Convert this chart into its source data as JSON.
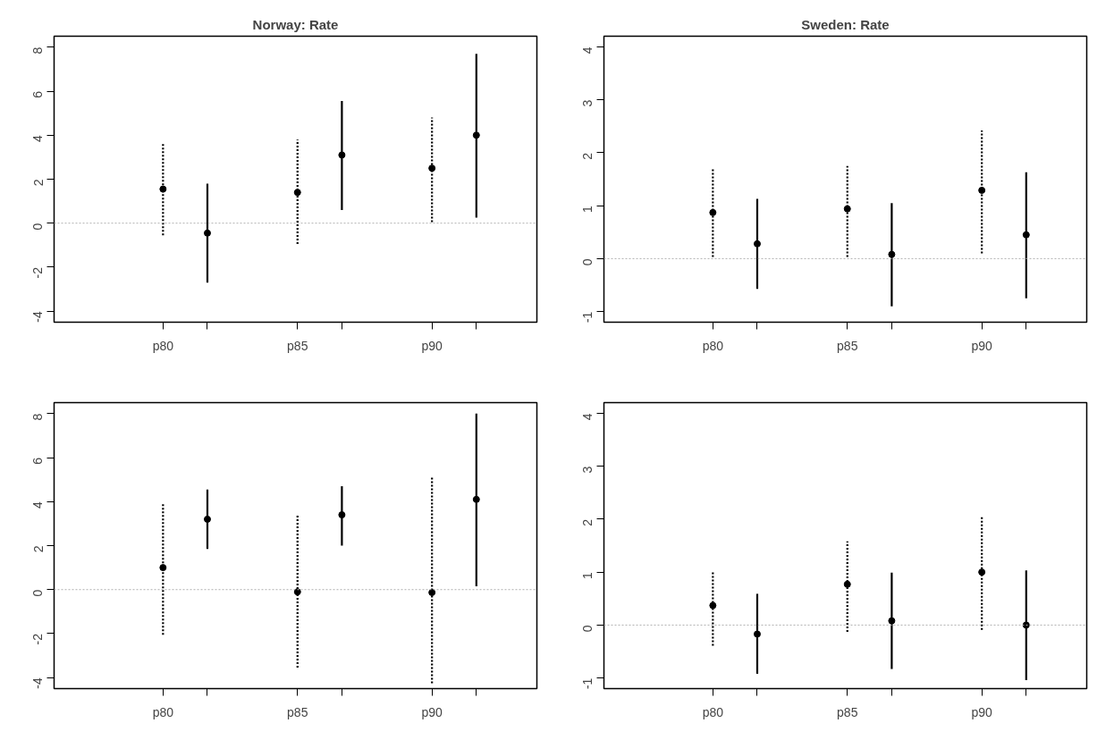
{
  "chart_data": [
    {
      "type": "scatter",
      "title": "Norway: Rate",
      "marker": "circle",
      "grid": false,
      "ylim": [
        -4.5,
        8.5
      ],
      "yticks": [
        -4,
        -2,
        0,
        2,
        4,
        6,
        8
      ],
      "categories": [
        "p80",
        null,
        "p85",
        null,
        "p90",
        null
      ],
      "ref_lines": [
        {
          "axis": "y",
          "value": 0,
          "label": null,
          "color": "#b0b0b0",
          "line_style": "dotted"
        }
      ],
      "series": [
        {
          "color": "#000000",
          "line_style": "dotted",
          "values": [
            1.55,
            null,
            1.4,
            null,
            2.5,
            null
          ],
          "errors": [
            [
              -0.55,
              3.6
            ],
            null,
            [
              -0.95,
              3.8
            ],
            null,
            [
              0.05,
              4.8
            ],
            null
          ]
        },
        {
          "color": "#000000",
          "line_style": "solid",
          "values": [
            null,
            -0.45,
            null,
            3.1,
            null,
            4.0
          ],
          "errors": [
            null,
            [
              -2.7,
              1.8
            ],
            null,
            [
              0.6,
              5.55
            ],
            null,
            [
              0.25,
              7.7
            ]
          ]
        }
      ]
    },
    {
      "type": "scatter",
      "title": "Sweden: Rate",
      "marker": "circle",
      "grid": false,
      "ylim": [
        -1.2,
        4.2
      ],
      "yticks": [
        -1,
        0,
        1,
        2,
        3,
        4
      ],
      "categories": [
        "p80",
        null,
        "p85",
        null,
        "p90",
        null
      ],
      "ref_lines": [
        {
          "axis": "y",
          "value": 0,
          "label": null,
          "color": "#b0b0b0",
          "line_style": "dotted"
        }
      ],
      "series": [
        {
          "color": "#000000",
          "line_style": "dotted",
          "values": [
            0.87,
            null,
            0.94,
            null,
            1.29,
            null
          ],
          "errors": [
            [
              0.03,
              1.71
            ],
            null,
            [
              0.03,
              1.75
            ],
            null,
            [
              0.1,
              2.42
            ],
            null
          ]
        },
        {
          "color": "#000000",
          "line_style": "solid",
          "values": [
            null,
            0.28,
            null,
            0.08,
            null,
            0.45
          ],
          "errors": [
            null,
            [
              -0.57,
              1.13
            ],
            null,
            [
              -0.9,
              1.05
            ],
            null,
            [
              -0.75,
              1.63
            ]
          ]
        }
      ]
    },
    {
      "type": "scatter",
      "marker": "circle",
      "grid": false,
      "ylim": [
        -4.5,
        8.5
      ],
      "yticks": [
        -4,
        -2,
        0,
        2,
        4,
        6,
        8
      ],
      "categories": [
        "p80",
        null,
        "p85",
        null,
        "p90",
        null
      ],
      "ref_lines": [
        {
          "axis": "y",
          "value": 0,
          "label": null,
          "color": "#b0b0b0",
          "line_style": "dotted"
        }
      ],
      "series": [
        {
          "color": "#000000",
          "line_style": "dotted",
          "values": [
            1.0,
            null,
            -0.1,
            null,
            -0.13,
            null
          ],
          "errors": [
            [
              -2.05,
              3.9
            ],
            null,
            [
              -3.55,
              3.4
            ],
            null,
            [
              -4.26,
              5.1
            ],
            null
          ]
        },
        {
          "color": "#000000",
          "line_style": "solid",
          "values": [
            null,
            3.2,
            null,
            3.4,
            null,
            4.1
          ],
          "errors": [
            null,
            [
              1.85,
              4.55
            ],
            null,
            [
              2.0,
              4.7
            ],
            null,
            [
              0.15,
              8.0
            ]
          ]
        }
      ]
    },
    {
      "type": "scatter",
      "marker": "circle",
      "grid": false,
      "ylim": [
        -1.2,
        4.2
      ],
      "yticks": [
        -1,
        0,
        1,
        2,
        3,
        4
      ],
      "categories": [
        "p80",
        null,
        "p85",
        null,
        "p90",
        null
      ],
      "ref_lines": [
        {
          "axis": "y",
          "value": 0,
          "label": null,
          "color": "#b0b0b0",
          "line_style": "dotted"
        }
      ],
      "series": [
        {
          "color": "#000000",
          "line_style": "dotted",
          "values": [
            0.37,
            null,
            0.77,
            null,
            1.0,
            null
          ],
          "errors": [
            [
              -0.39,
              1.01
            ],
            null,
            [
              -0.13,
              1.58
            ],
            null,
            [
              -0.09,
              2.07
            ],
            null
          ]
        },
        {
          "color": "#000000",
          "line_style": "solid",
          "values": [
            null,
            -0.17,
            null,
            0.08,
            null,
            0.0
          ],
          "errors": [
            null,
            [
              -0.92,
              0.59
            ],
            null,
            [
              -0.83,
              0.99
            ],
            null,
            [
              -1.04,
              1.03
            ]
          ]
        }
      ]
    }
  ]
}
